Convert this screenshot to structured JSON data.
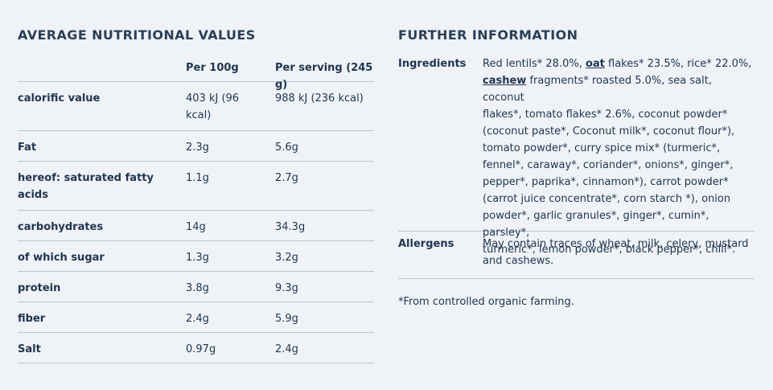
{
  "nutrition": {
    "title": "AVERAGE NUTRITIONAL VALUES",
    "col_per100": "Per 100g",
    "col_serving": "Per serving (245 g)",
    "rows": [
      {
        "label": "calorific value",
        "per100": "403 kJ (96\nkcal)",
        "serving": "988 kJ (236 kcal)"
      },
      {
        "label": "Fat",
        "per100": "2.3g",
        "serving": "5.6g"
      },
      {
        "label": "hereof: saturated fatty\nacids",
        "per100": "1.1g",
        "serving": "2.7g"
      },
      {
        "label": "carbohydrates",
        "per100": "14g",
        "serving": "34.3g"
      },
      {
        "label": "of which sugar",
        "per100": "1.3g",
        "serving": "3.2g"
      },
      {
        "label": "protein",
        "per100": "3.8g",
        "serving": "9.3g"
      },
      {
        "label": "fiber",
        "per100": "2.4g",
        "serving": "5.9g"
      },
      {
        "label": "Salt",
        "per100": "0.97g",
        "serving": "2.4g"
      }
    ]
  },
  "further": {
    "title": "FURTHER INFORMATION",
    "ingredients_label": "Ingredients",
    "ingredients": {
      "part1": "Red lentils* 28.0%, ",
      "oat": "oat",
      "part2": " flakes* 23.5%, rice* 22.0%,\n",
      "cashew": "cashew",
      "part3": " fragments* roasted 5.0%, sea salt, coconut\nflakes*, tomato flakes* 2.6%, coconut powder*\n(coconut paste*, Coconut milk*, coconut flour*),\ntomato powder*, curry spice mix* (turmeric*,\nfennel*, caraway*, coriander*, onions*, ginger*,\npepper*, paprika*, cinnamon*), carrot powder*\n(carrot juice concentrate*, corn starch *), onion\npowder*, garlic granules*, ginger*, cumin*, parsley*,\nturmeric*, lemon powder*, black pepper*, chili*."
    },
    "allergens_label": "Allergens",
    "allergens": "May contain traces of wheat, milk, celery, mustard\nand cashews.",
    "footnote": "*From controlled organic farming."
  }
}
